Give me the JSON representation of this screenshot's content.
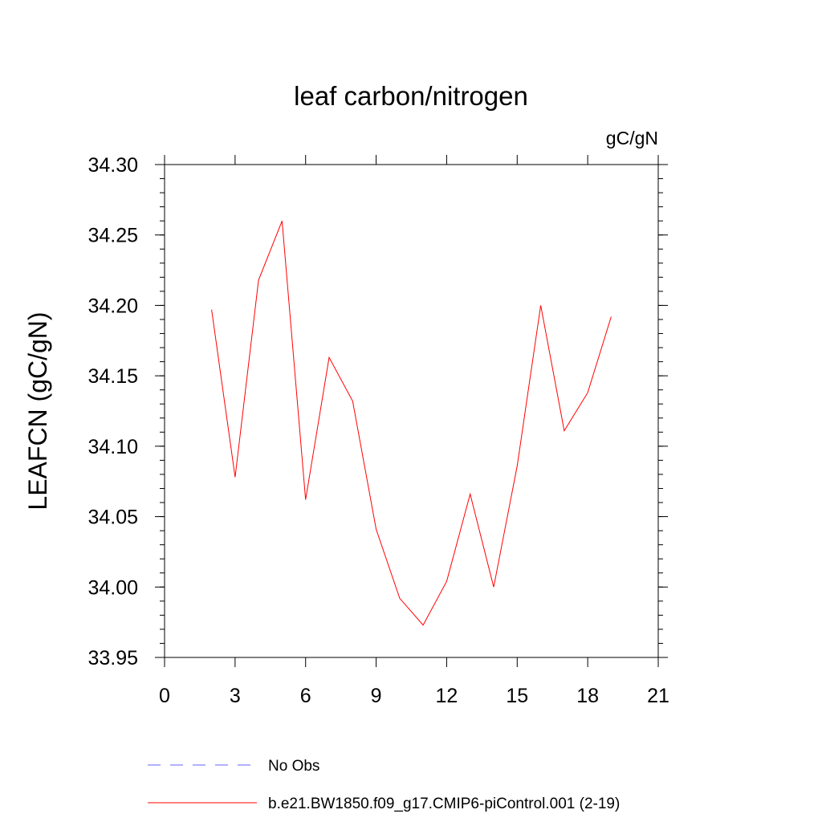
{
  "chart_data": {
    "type": "line",
    "title": "leaf carbon/nitrogen",
    "units": "gC/gN",
    "ylabel": "LEAFCN  (gC/gN)",
    "xlabel": "",
    "xlim": [
      0,
      21
    ],
    "ylim": [
      33.95,
      34.3
    ],
    "xticks": [
      0,
      3,
      6,
      9,
      12,
      15,
      18,
      21
    ],
    "yticks": [
      "33.95",
      "34.00",
      "34.05",
      "34.10",
      "34.15",
      "34.20",
      "34.25",
      "34.30"
    ],
    "series": [
      {
        "name": "b.e21.BW1850.f09_g17.CMIP6-piControl.001 (2-19)",
        "color": "#ff0000",
        "x": [
          2,
          3,
          4,
          5,
          6,
          7,
          8,
          9,
          10,
          11,
          12,
          13,
          14,
          15,
          16,
          17,
          18,
          19
        ],
        "y": [
          34.197,
          34.078,
          34.218,
          34.26,
          34.062,
          34.163,
          34.132,
          34.041,
          33.992,
          33.973,
          34.004,
          34.066,
          34.0,
          34.086,
          34.2,
          34.111,
          34.138,
          34.192
        ]
      }
    ],
    "legend": [
      {
        "label": "No Obs",
        "color": "#6666ff",
        "style": "dashed"
      },
      {
        "label": "b.e21.BW1850.f09_g17.CMIP6-piControl.001 (2-19)",
        "color": "#ff0000",
        "style": "solid"
      }
    ],
    "legend_position": "bottom",
    "grid": false
  }
}
